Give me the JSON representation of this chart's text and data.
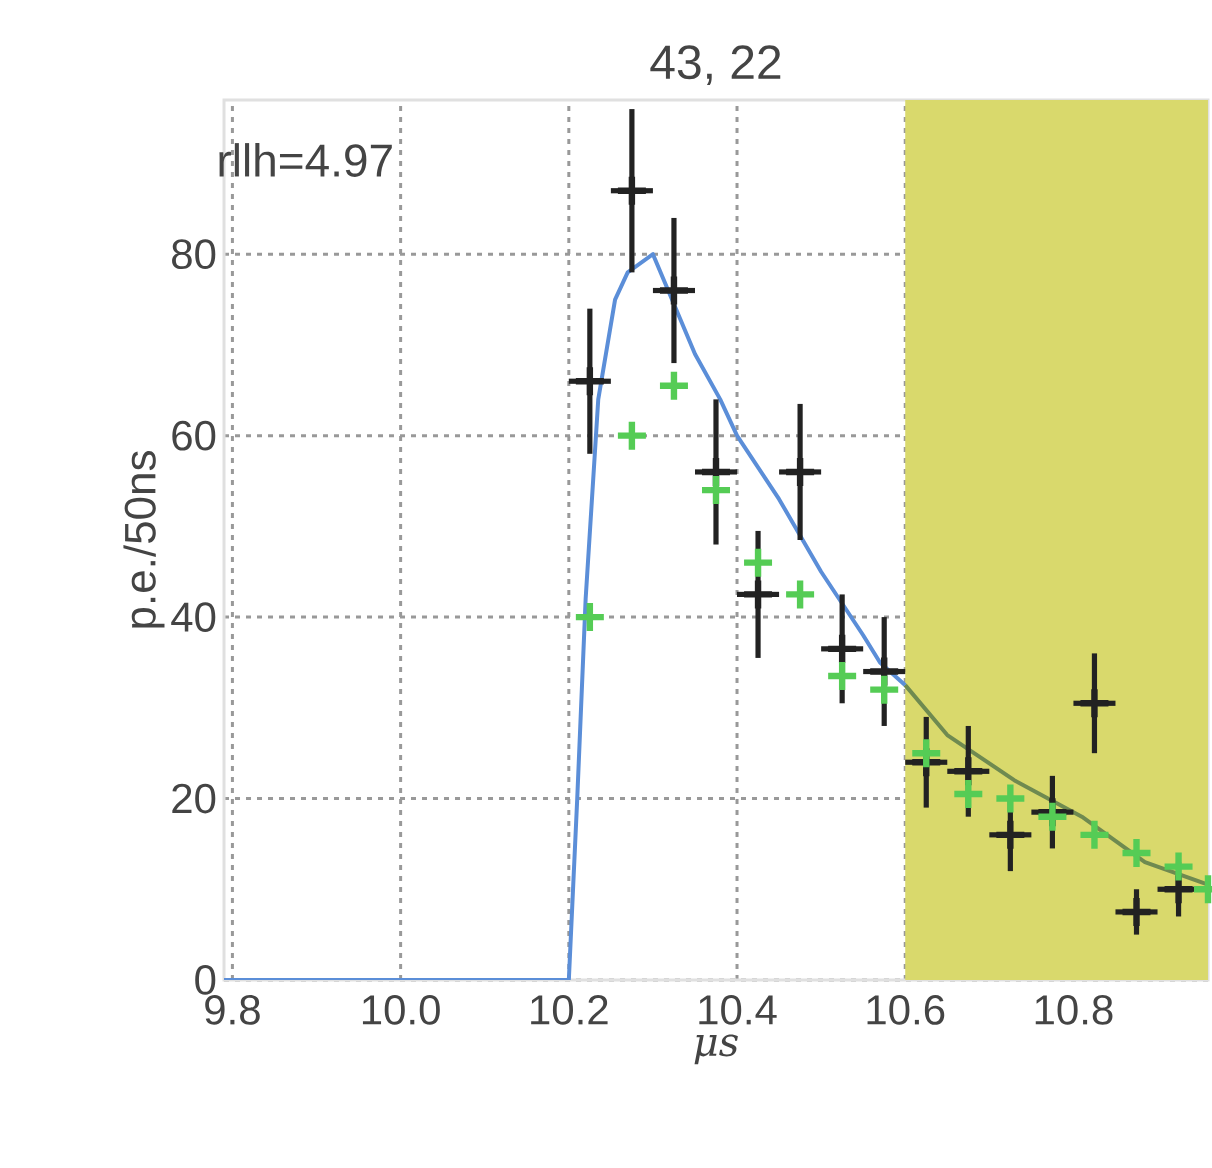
{
  "chart_data": {
    "type": "scatter",
    "title": "43, 22",
    "xlabel": "μs",
    "ylabel": "p.e./50ns",
    "annotations": [
      "rllh=4.97"
    ],
    "xlim": [
      9.79,
      10.96
    ],
    "ylim": [
      0,
      97
    ],
    "xticks": [
      {
        "value": 9.8,
        "label": "9.8"
      },
      {
        "value": 10.0,
        "label": "10.0"
      },
      {
        "value": 10.2,
        "label": "10.2"
      },
      {
        "value": 10.4,
        "label": "10.4"
      },
      {
        "value": 10.6,
        "label": "10.6"
      },
      {
        "value": 10.8,
        "label": "10.8"
      }
    ],
    "yticks": [
      0,
      20,
      40,
      60,
      80
    ],
    "grid": true,
    "bands": [
      {
        "axis": "x",
        "from": 10.6,
        "to": 10.96,
        "color": "#d9d96c"
      }
    ],
    "series": [
      {
        "type": "line",
        "color": "#5b8ed8",
        "marker": "none",
        "line_style": "solid",
        "x": [
          9.79,
          10.2,
          10.21,
          10.22,
          10.235,
          10.255,
          10.27,
          10.3,
          10.35,
          10.38,
          10.4,
          10.45,
          10.475,
          10.5,
          10.55,
          10.57,
          10.6
        ],
        "values": [
          0,
          0,
          20,
          42,
          64,
          75,
          78,
          80,
          69,
          64,
          60,
          53,
          49,
          45,
          38,
          35,
          32.5
        ]
      },
      {
        "type": "line",
        "color": "#6f8a50",
        "marker": "none",
        "line_style": "solid",
        "x": [
          10.6,
          10.65,
          10.73,
          10.81,
          10.885,
          10.96
        ],
        "values": [
          32.5,
          27,
          22,
          18,
          13,
          10.5
        ]
      },
      {
        "type": "scatter",
        "color": "#222222",
        "marker": "cross",
        "x": [
          10.225,
          10.275,
          10.325,
          10.375,
          10.425,
          10.475,
          10.525,
          10.575,
          10.625,
          10.675,
          10.725,
          10.775,
          10.825,
          10.875,
          10.925
        ],
        "values": [
          66,
          87,
          76,
          56,
          42.5,
          56,
          36.5,
          34,
          24,
          23,
          16,
          18.5,
          30.5,
          7.5,
          10
        ],
        "errors": [
          8,
          9,
          8,
          8,
          7,
          7.5,
          6,
          6,
          5,
          5,
          4,
          4,
          5.5,
          2.5,
          3
        ],
        "xerrors": [
          0.025,
          0.025,
          0.025,
          0.025,
          0.025,
          0.025,
          0.025,
          0.025,
          0.025,
          0.025,
          0.025,
          0.025,
          0.025,
          0.025,
          0.025
        ]
      },
      {
        "type": "scatter",
        "color": "#55cc55",
        "marker": "cross",
        "x": [
          10.225,
          10.275,
          10.325,
          10.375,
          10.425,
          10.475,
          10.525,
          10.575,
          10.625,
          10.675,
          10.725,
          10.775,
          10.825,
          10.875,
          10.925,
          10.96
        ],
        "values": [
          40,
          60,
          65.5,
          54,
          46,
          42.5,
          33.5,
          32,
          25,
          20.5,
          20,
          18,
          16,
          14,
          12.5,
          10
        ]
      }
    ]
  }
}
